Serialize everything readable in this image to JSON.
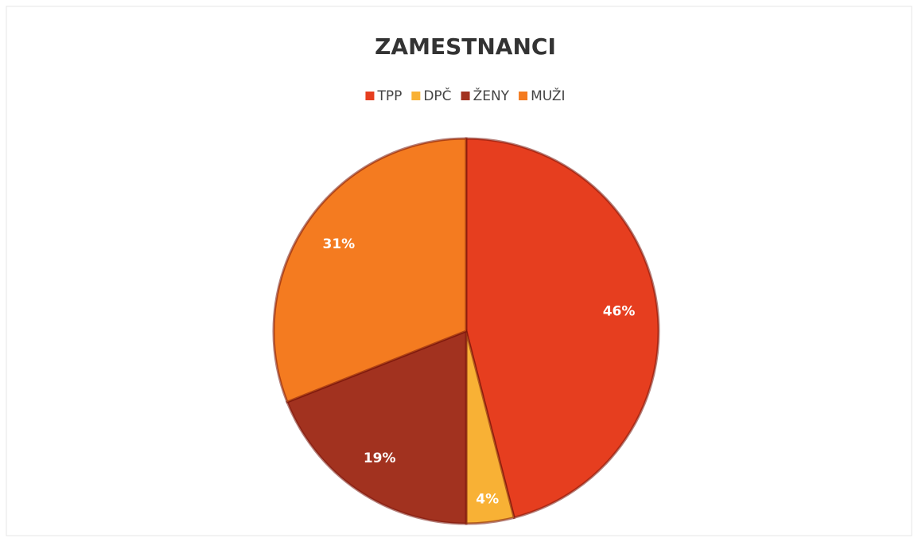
{
  "chart_data": {
    "type": "pie",
    "title": "ZAMESTNANCI",
    "categories": [
      "TPP",
      "DPČ",
      "ŽENY",
      "MUŽI"
    ],
    "values": [
      46,
      4,
      19,
      31
    ],
    "value_labels": [
      "46%",
      "4%",
      "19%",
      "31%"
    ],
    "colors": [
      "#e63e1f",
      "#f8b135",
      "#a2321f",
      "#f47b20"
    ],
    "legend": "top"
  }
}
